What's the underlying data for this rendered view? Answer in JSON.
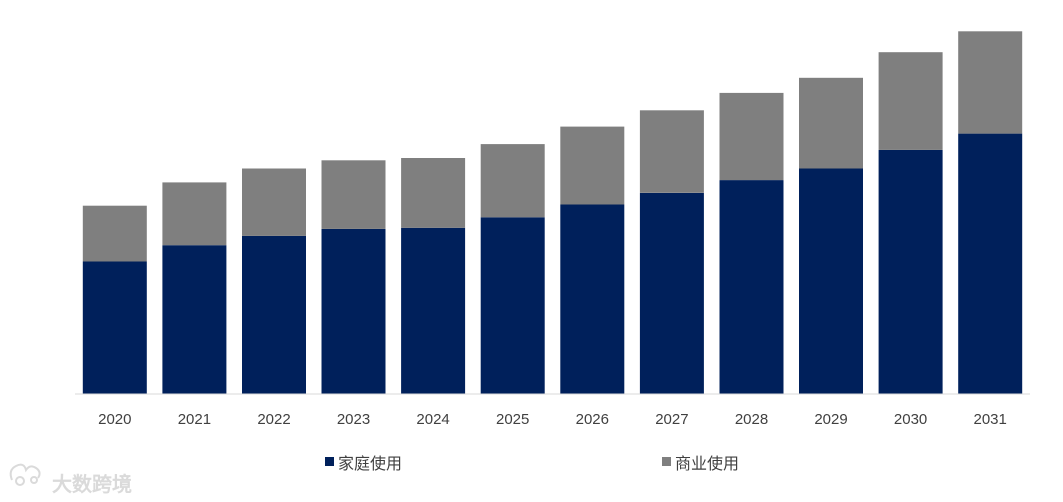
{
  "watermark": {
    "text": "大数跨境",
    "icon": "logo-icon"
  },
  "chart_data": {
    "type": "bar",
    "stacked": true,
    "categories": [
      "2020",
      "2021",
      "2022",
      "2023",
      "2024",
      "2025",
      "2026",
      "2027",
      "2028",
      "2029",
      "2030",
      "2031"
    ],
    "series": [
      {
        "name": "家庭使用",
        "color": "#00205b",
        "values": [
          57,
          64,
          68,
          71,
          71.5,
          76,
          81.5,
          86.5,
          92,
          97,
          105,
          112
        ]
      },
      {
        "name": "商业使用",
        "color": "#7f7f7f",
        "values": [
          24,
          27,
          29,
          29.5,
          30,
          31.5,
          33.5,
          35.5,
          37.5,
          39,
          42,
          44
        ]
      }
    ],
    "ylim": [
      0,
      160
    ],
    "grid": false,
    "legend_position": "bottom",
    "title": "",
    "xlabel": "",
    "ylabel": ""
  }
}
